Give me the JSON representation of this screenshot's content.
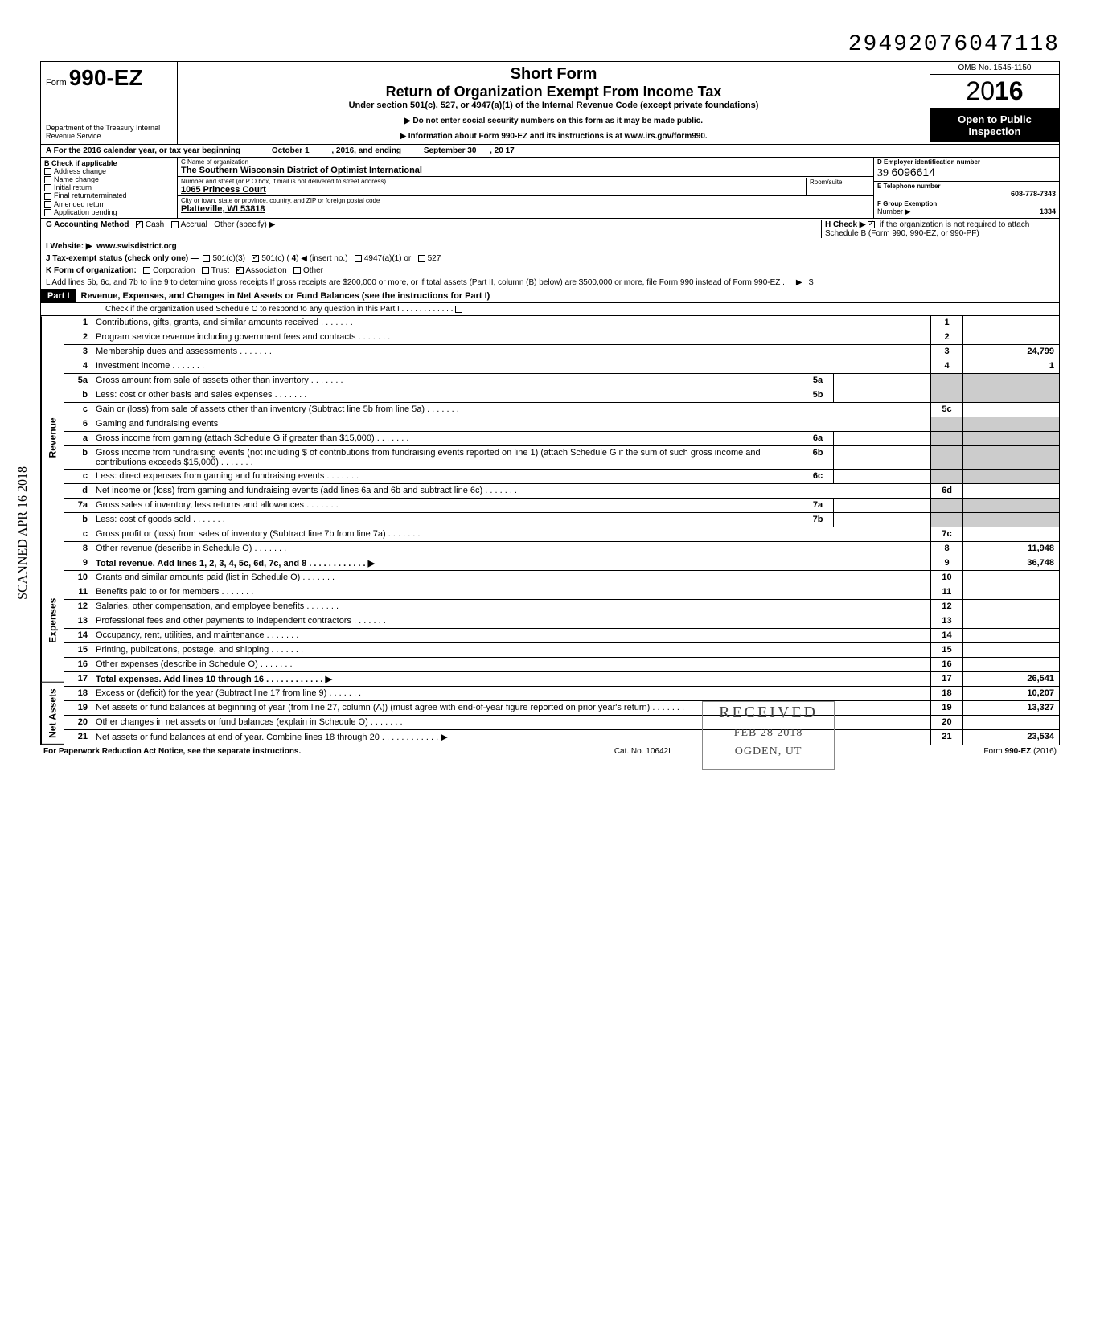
{
  "top_number": "29492076047118",
  "form_number": "990-EZ",
  "omb": "OMB No. 1545-1150",
  "year_display": "2016",
  "title1": "Short Form",
  "title2": "Return of Organization Exempt From Income Tax",
  "subtitle": "Under section 501(c), 527, or 4947(a)(1) of the Internal Revenue Code (except private foundations)",
  "note1": "▶ Do not enter social security numbers on this form as it may be made public.",
  "note2": "▶ Information about Form 990-EZ and its instructions is at www.irs.gov/form990.",
  "dept": "Department of the Treasury\nInternal Revenue Service",
  "inspect": "Open to Public Inspection",
  "rowA": {
    "label": "A For the 2016 calendar year, or tax year beginning",
    "begin": "October 1",
    "mid": ", 2016, and ending",
    "end": "September 30",
    "endyear": ", 20  17"
  },
  "B": {
    "header": "B  Check if applicable",
    "items": [
      "Address change",
      "Name change",
      "Initial return",
      "Final return/terminated",
      "Amended return",
      "Application pending"
    ]
  },
  "C": {
    "name_label": "C Name of organization",
    "name": "The Southern Wisconsin District of Optimist International",
    "addr_label": "Number and street (or P O box, if mail is not delivered to street address)",
    "addr": "1065 Princess Court",
    "room_label": "Room/suite",
    "city_label": "City or town, state or province, country, and ZIP or foreign postal code",
    "city": "Platteville, WI  53818"
  },
  "D": {
    "label": "D Employer identification number",
    "value_prefix": "39",
    "value": "6096614"
  },
  "E": {
    "label": "E Telephone number",
    "value": "608-778-7343"
  },
  "F": {
    "label": "F Group Exemption",
    "label2": "Number ▶",
    "value": "1334"
  },
  "G": {
    "label": "G Accounting Method",
    "cash": "Cash",
    "accrual": "Accrual",
    "other": "Other (specify) ▶",
    "cash_checked": true
  },
  "H": {
    "label": "H Check ▶",
    "text": "if the organization is not required to attach Schedule B (Form 990, 990-EZ, or 990-PF)",
    "checked": true
  },
  "I": {
    "label": "I  Website: ▶",
    "value": "www.swisdistrict.org"
  },
  "J": {
    "label": "J Tax-exempt status (check only one) —",
    "opt1": "501(c)(3)",
    "opt2": "501(c) (",
    "insert": "4",
    "opt2b": ") ◀ (insert no.)",
    "opt3": "4947(a)(1) or",
    "opt4": "527",
    "checked": "501c"
  },
  "K": {
    "label": "K Form of organization:",
    "corp": "Corporation",
    "trust": "Trust",
    "assoc": "Association",
    "other": "Other",
    "checked": "assoc"
  },
  "L": "L Add lines 5b, 6c, and 7b to line 9 to determine gross receipts If gross receipts are $200,000 or more, or if total assets (Part II, column (B) below) are $500,000 or more, file Form 990 instead of Form 990-EZ .",
  "part1": {
    "header": "Part I",
    "title": "Revenue, Expenses, and Changes in Net Assets or Fund Balances (see the instructions for Part I)",
    "check": "Check if the organization used Schedule O to respond to any question in this Part I"
  },
  "sections": {
    "revenue": "Revenue",
    "expenses": "Expenses",
    "netassets": "Net Assets"
  },
  "lines": [
    {
      "n": "1",
      "d": "Contributions, gifts, grants, and similar amounts received",
      "box": "1",
      "v": ""
    },
    {
      "n": "2",
      "d": "Program service revenue including government fees and contracts",
      "box": "2",
      "v": ""
    },
    {
      "n": "3",
      "d": "Membership dues and assessments",
      "box": "3",
      "v": "24,799"
    },
    {
      "n": "4",
      "d": "Investment income",
      "box": "4",
      "v": "1"
    },
    {
      "n": "5a",
      "d": "Gross amount from sale of assets other than inventory",
      "mid": "5a"
    },
    {
      "n": "b",
      "d": "Less: cost or other basis and sales expenses",
      "mid": "5b"
    },
    {
      "n": "c",
      "d": "Gain or (loss) from sale of assets other than inventory (Subtract line 5b from line 5a)",
      "box": "5c",
      "v": ""
    },
    {
      "n": "6",
      "d": "Gaming and fundraising events"
    },
    {
      "n": "a",
      "d": "Gross income from gaming (attach Schedule G if greater than $15,000)",
      "mid": "6a"
    },
    {
      "n": "b",
      "d": "Gross income from fundraising events (not including  $                    of contributions from fundraising events reported on line 1) (attach Schedule G if the sum of such gross income and contributions exceeds $15,000)",
      "mid": "6b"
    },
    {
      "n": "c",
      "d": "Less: direct expenses from gaming and fundraising events",
      "mid": "6c"
    },
    {
      "n": "d",
      "d": "Net income or (loss) from gaming and fundraising events (add lines 6a and 6b and subtract line 6c)",
      "box": "6d",
      "v": ""
    },
    {
      "n": "7a",
      "d": "Gross sales of inventory, less returns and allowances",
      "mid": "7a"
    },
    {
      "n": "b",
      "d": "Less: cost of goods sold",
      "mid": "7b"
    },
    {
      "n": "c",
      "d": "Gross profit or (loss) from sales of inventory (Subtract line 7b from line 7a)",
      "box": "7c",
      "v": ""
    },
    {
      "n": "8",
      "d": "Other revenue (describe in Schedule O)",
      "box": "8",
      "v": "11,948"
    },
    {
      "n": "9",
      "d": "Total revenue. Add lines 1, 2, 3, 4, 5c, 6d, 7c, and 8",
      "box": "9",
      "v": "36,748",
      "bold": true,
      "arrow": true
    },
    {
      "n": "10",
      "d": "Grants and similar amounts paid (list in Schedule O)",
      "box": "10",
      "v": ""
    },
    {
      "n": "11",
      "d": "Benefits paid to or for members",
      "box": "11",
      "v": ""
    },
    {
      "n": "12",
      "d": "Salaries, other compensation, and employee benefits",
      "box": "12",
      "v": ""
    },
    {
      "n": "13",
      "d": "Professional fees and other payments to independent contractors",
      "box": "13",
      "v": ""
    },
    {
      "n": "14",
      "d": "Occupancy, rent, utilities, and maintenance",
      "box": "14",
      "v": ""
    },
    {
      "n": "15",
      "d": "Printing, publications, postage, and shipping",
      "box": "15",
      "v": ""
    },
    {
      "n": "16",
      "d": "Other expenses (describe in Schedule O)",
      "box": "16",
      "v": ""
    },
    {
      "n": "17",
      "d": "Total expenses. Add lines 10 through 16",
      "box": "17",
      "v": "26,541",
      "bold": true,
      "arrow": true
    },
    {
      "n": "18",
      "d": "Excess or (deficit) for the year (Subtract line 17 from line 9)",
      "box": "18",
      "v": "10,207"
    },
    {
      "n": "19",
      "d": "Net assets or fund balances at beginning of year (from line 27, column (A)) (must agree with end-of-year figure reported on prior year's return)",
      "box": "19",
      "v": "13,327"
    },
    {
      "n": "20",
      "d": "Other changes in net assets or fund balances (explain in Schedule O)",
      "box": "20",
      "v": ""
    },
    {
      "n": "21",
      "d": "Net assets or fund balances at end of year. Combine lines 18 through 20",
      "box": "21",
      "v": "23,534",
      "arrow": true
    }
  ],
  "footer": {
    "left": "For Paperwork Reduction Act Notice, see the separate instructions.",
    "mid": "Cat. No. 10642I",
    "right": "Form 990-EZ (2016)"
  },
  "stamps": {
    "received": "RECEIVED",
    "date": "FEB 28 2018",
    "ogden": "OGDEN, UT",
    "scanned": "SCANNED APR 16 2018"
  }
}
